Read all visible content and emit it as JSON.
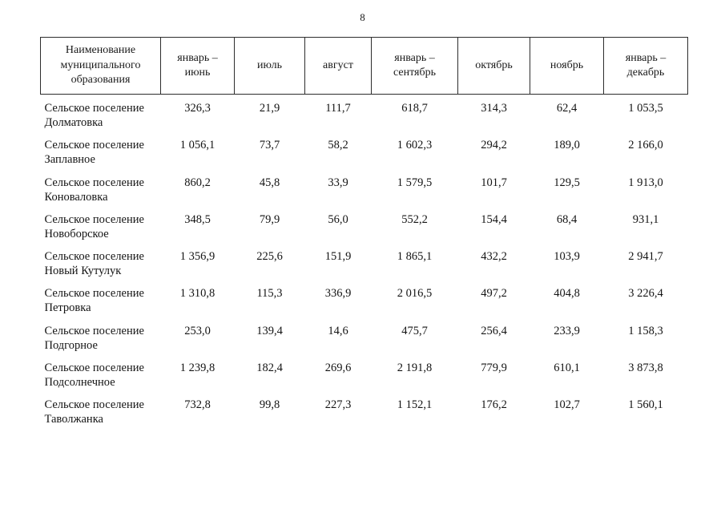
{
  "page": {
    "number": "8"
  },
  "table": {
    "columns": [
      "Наименование муниципального образования",
      "январь – июнь",
      "июль",
      "август",
      "январь – сентябрь",
      "октябрь",
      "ноябрь",
      "январь – декабрь"
    ],
    "rows": [
      {
        "name": "Сельское поселение Долматовка",
        "values": [
          "326,3",
          "21,9",
          "111,7",
          "618,7",
          "314,3",
          "62,4",
          "1 053,5"
        ]
      },
      {
        "name": "Сельское поселение Заплавное",
        "values": [
          "1 056,1",
          "73,7",
          "58,2",
          "1 602,3",
          "294,2",
          "189,0",
          "2 166,0"
        ]
      },
      {
        "name": "Сельское поселение Коноваловка",
        "values": [
          "860,2",
          "45,8",
          "33,9",
          "1 579,5",
          "101,7",
          "129,5",
          "1 913,0"
        ]
      },
      {
        "name": "Сельское поселение Новоборское",
        "values": [
          "348,5",
          "79,9",
          "56,0",
          "552,2",
          "154,4",
          "68,4",
          "931,1"
        ]
      },
      {
        "name": "Сельское поселение Новый Кутулук",
        "values": [
          "1 356,9",
          "225,6",
          "151,9",
          "1 865,1",
          "432,2",
          "103,9",
          "2 941,7"
        ]
      },
      {
        "name": "Сельское поселение Петровка",
        "values": [
          "1 310,8",
          "115,3",
          "336,9",
          "2 016,5",
          "497,2",
          "404,8",
          "3 226,4"
        ]
      },
      {
        "name": "Сельское поселение Подгорное",
        "values": [
          "253,0",
          "139,4",
          "14,6",
          "475,7",
          "256,4",
          "233,9",
          "1 158,3"
        ]
      },
      {
        "name": "Сельское поселение Подсолнечное",
        "values": [
          "1 239,8",
          "182,4",
          "269,6",
          "2 191,8",
          "779,9",
          "610,1",
          "3 873,8"
        ]
      },
      {
        "name": "Сельское поселение Таволжанка",
        "values": [
          "732,8",
          "99,8",
          "227,3",
          "1 152,1",
          "176,2",
          "102,7",
          "1 560,1"
        ]
      }
    ]
  }
}
